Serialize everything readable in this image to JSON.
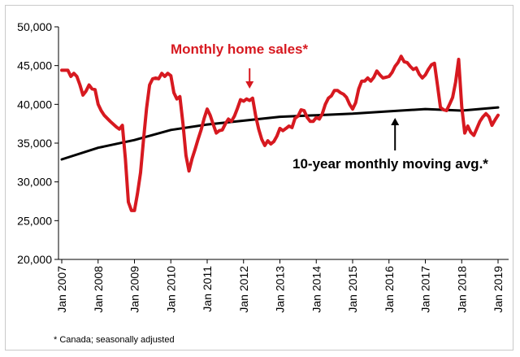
{
  "chart_data": {
    "type": "line",
    "x_axis": {
      "tick_labels": [
        "Jan 2007",
        "Jan 2008",
        "Jan 2009",
        "Jan 2010",
        "Jan 2011",
        "Jan 2012",
        "Jan 2013",
        "Jan 2014",
        "Jan 2015",
        "Jan 2016",
        "Jan 2017",
        "Jan 2018",
        "Jan 2019"
      ],
      "start": "2007-01",
      "end": "2019-01"
    },
    "y_axis": {
      "min": 20000,
      "max": 50000,
      "tick_labels": [
        "20,000",
        "25,000",
        "30,000",
        "35,000",
        "40,000",
        "45,000",
        "50,000"
      ],
      "tick_values": [
        20000,
        25000,
        30000,
        35000,
        40000,
        45000,
        50000
      ]
    },
    "grid": false,
    "series": [
      {
        "name": "Monthly home sales*",
        "color": "#d71920",
        "points": [
          [
            "2007-01",
            44400
          ],
          [
            "2007-03",
            44400
          ],
          [
            "2007-04",
            43600
          ],
          [
            "2007-05",
            44000
          ],
          [
            "2007-06",
            43600
          ],
          [
            "2007-07",
            42500
          ],
          [
            "2007-08",
            41200
          ],
          [
            "2007-09",
            41700
          ],
          [
            "2007-10",
            42500
          ],
          [
            "2007-11",
            42000
          ],
          [
            "2007-12",
            41900
          ],
          [
            "2008-01",
            40000
          ],
          [
            "2008-02",
            39200
          ],
          [
            "2008-03",
            38600
          ],
          [
            "2008-05",
            37800
          ],
          [
            "2008-07",
            37100
          ],
          [
            "2008-08",
            36800
          ],
          [
            "2008-09",
            37300
          ],
          [
            "2008-10",
            33000
          ],
          [
            "2008-11",
            27400
          ],
          [
            "2008-12",
            26300
          ],
          [
            "2009-01",
            26300
          ],
          [
            "2009-02",
            28500
          ],
          [
            "2009-03",
            31200
          ],
          [
            "2009-04",
            35500
          ],
          [
            "2009-05",
            39500
          ],
          [
            "2009-06",
            42500
          ],
          [
            "2009-07",
            43300
          ],
          [
            "2009-08",
            43400
          ],
          [
            "2009-09",
            43300
          ],
          [
            "2009-10",
            44000
          ],
          [
            "2009-11",
            43600
          ],
          [
            "2009-12",
            44000
          ],
          [
            "2010-01",
            43700
          ],
          [
            "2010-02",
            41500
          ],
          [
            "2010-03",
            40700
          ],
          [
            "2010-04",
            41000
          ],
          [
            "2010-05",
            37500
          ],
          [
            "2010-06",
            33400
          ],
          [
            "2010-07",
            31400
          ],
          [
            "2010-08",
            33000
          ],
          [
            "2010-09",
            34200
          ],
          [
            "2010-10",
            35500
          ],
          [
            "2010-11",
            36700
          ],
          [
            "2010-12",
            38200
          ],
          [
            "2011-01",
            39400
          ],
          [
            "2011-02",
            38600
          ],
          [
            "2011-03",
            37400
          ],
          [
            "2011-04",
            36300
          ],
          [
            "2011-05",
            36600
          ],
          [
            "2011-06",
            36700
          ],
          [
            "2011-07",
            37500
          ],
          [
            "2011-08",
            38100
          ],
          [
            "2011-09",
            37800
          ],
          [
            "2011-10",
            38500
          ],
          [
            "2011-11",
            39500
          ],
          [
            "2011-12",
            40600
          ],
          [
            "2012-01",
            40400
          ],
          [
            "2012-02",
            40700
          ],
          [
            "2012-03",
            40500
          ],
          [
            "2012-04",
            40800
          ],
          [
            "2012-05",
            38500
          ],
          [
            "2012-06",
            36800
          ],
          [
            "2012-07",
            35500
          ],
          [
            "2012-08",
            34700
          ],
          [
            "2012-09",
            35300
          ],
          [
            "2012-10",
            34900
          ],
          [
            "2012-11",
            35200
          ],
          [
            "2012-12",
            35900
          ],
          [
            "2013-01",
            36900
          ],
          [
            "2013-02",
            36600
          ],
          [
            "2013-03",
            36900
          ],
          [
            "2013-04",
            37200
          ],
          [
            "2013-05",
            37000
          ],
          [
            "2013-06",
            38200
          ],
          [
            "2013-07",
            38500
          ],
          [
            "2013-08",
            39300
          ],
          [
            "2013-09",
            39200
          ],
          [
            "2013-10",
            38300
          ],
          [
            "2013-11",
            37800
          ],
          [
            "2013-12",
            37800
          ],
          [
            "2014-01",
            38300
          ],
          [
            "2014-02",
            38100
          ],
          [
            "2014-03",
            38800
          ],
          [
            "2014-04",
            40000
          ],
          [
            "2014-05",
            40800
          ],
          [
            "2014-06",
            41100
          ],
          [
            "2014-07",
            41800
          ],
          [
            "2014-08",
            41800
          ],
          [
            "2014-09",
            41500
          ],
          [
            "2014-10",
            41300
          ],
          [
            "2014-11",
            40900
          ],
          [
            "2014-12",
            40000
          ],
          [
            "2015-01",
            39400
          ],
          [
            "2015-02",
            40200
          ],
          [
            "2015-03",
            42000
          ],
          [
            "2015-04",
            43000
          ],
          [
            "2015-05",
            43000
          ],
          [
            "2015-06",
            43400
          ],
          [
            "2015-07",
            43000
          ],
          [
            "2015-08",
            43500
          ],
          [
            "2015-09",
            44300
          ],
          [
            "2015-10",
            43800
          ],
          [
            "2015-11",
            43400
          ],
          [
            "2015-12",
            43500
          ],
          [
            "2016-01",
            43600
          ],
          [
            "2016-02",
            44100
          ],
          [
            "2016-03",
            44900
          ],
          [
            "2016-04",
            45400
          ],
          [
            "2016-05",
            46200
          ],
          [
            "2016-06",
            45500
          ],
          [
            "2016-07",
            45400
          ],
          [
            "2016-08",
            44900
          ],
          [
            "2016-09",
            44500
          ],
          [
            "2016-10",
            44700
          ],
          [
            "2016-11",
            43900
          ],
          [
            "2016-12",
            43400
          ],
          [
            "2017-01",
            43800
          ],
          [
            "2017-02",
            44500
          ],
          [
            "2017-03",
            45100
          ],
          [
            "2017-04",
            45300
          ],
          [
            "2017-05",
            42500
          ],
          [
            "2017-06",
            39600
          ],
          [
            "2017-07",
            39300
          ],
          [
            "2017-08",
            39200
          ],
          [
            "2017-09",
            40000
          ],
          [
            "2017-10",
            40900
          ],
          [
            "2017-11",
            42900
          ],
          [
            "2017-12",
            45800
          ],
          [
            "2018-01",
            39700
          ],
          [
            "2018-02",
            36300
          ],
          [
            "2018-03",
            37200
          ],
          [
            "2018-04",
            36400
          ],
          [
            "2018-05",
            36000
          ],
          [
            "2018-06",
            36900
          ],
          [
            "2018-07",
            37800
          ],
          [
            "2018-08",
            38400
          ],
          [
            "2018-09",
            38800
          ],
          [
            "2018-10",
            38400
          ],
          [
            "2018-11",
            37300
          ],
          [
            "2018-12",
            38000
          ],
          [
            "2019-01",
            38600
          ]
        ]
      },
      {
        "name": "10-year monthly moving avg.*",
        "color": "#000000",
        "points": [
          [
            "2007-01",
            32900
          ],
          [
            "2008-01",
            34400
          ],
          [
            "2009-01",
            35400
          ],
          [
            "2010-01",
            36700
          ],
          [
            "2011-01",
            37400
          ],
          [
            "2012-01",
            37900
          ],
          [
            "2013-01",
            38400
          ],
          [
            "2014-01",
            38600
          ],
          [
            "2015-01",
            38800
          ],
          [
            "2016-01",
            39100
          ],
          [
            "2017-01",
            39400
          ],
          [
            "2018-01",
            39200
          ],
          [
            "2019-01",
            39600
          ]
        ]
      }
    ],
    "annotations": {
      "sales_label": "Monthly home sales*",
      "avg_label": "10-year monthly moving avg.*"
    }
  },
  "footnote": "* Canada; seasonally adjusted"
}
